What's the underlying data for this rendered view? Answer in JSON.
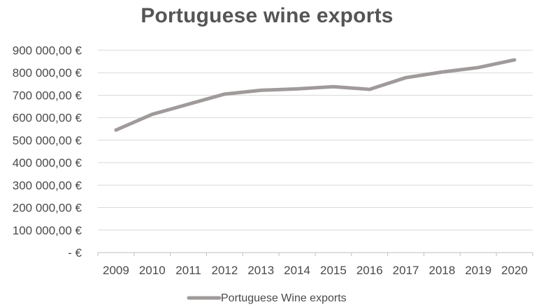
{
  "chart_data": {
    "type": "line",
    "title": "Portuguese wine exports",
    "categories": [
      "2009",
      "2010",
      "2011",
      "2012",
      "2013",
      "2014",
      "2015",
      "2016",
      "2017",
      "2018",
      "2019",
      "2020"
    ],
    "series": [
      {
        "name": "Portuguese Wine exports",
        "color": "#a09a9a",
        "values": [
          545000,
          615000,
          660000,
          705000,
          722000,
          728000,
          738000,
          726000,
          778000,
          803000,
          823000,
          857000
        ]
      }
    ],
    "ylim": [
      0,
      900000
    ],
    "yticks": [
      {
        "value": 900000,
        "label": "900 000,00 €"
      },
      {
        "value": 800000,
        "label": "800 000,00 €"
      },
      {
        "value": 700000,
        "label": "700 000,00 €"
      },
      {
        "value": 600000,
        "label": "600 000,00 €"
      },
      {
        "value": 500000,
        "label": "500 000,00 €"
      },
      {
        "value": 400000,
        "label": "400 000,00 €"
      },
      {
        "value": 300000,
        "label": "300 000,00 €"
      },
      {
        "value": 200000,
        "label": "200 000,00 €"
      },
      {
        "value": 100000,
        "label": "100 000,00 €"
      },
      {
        "value": 0,
        "label": "-  €"
      }
    ],
    "grid": true,
    "legend_position": "bottom",
    "gridline_color": "#d9d9d9"
  }
}
